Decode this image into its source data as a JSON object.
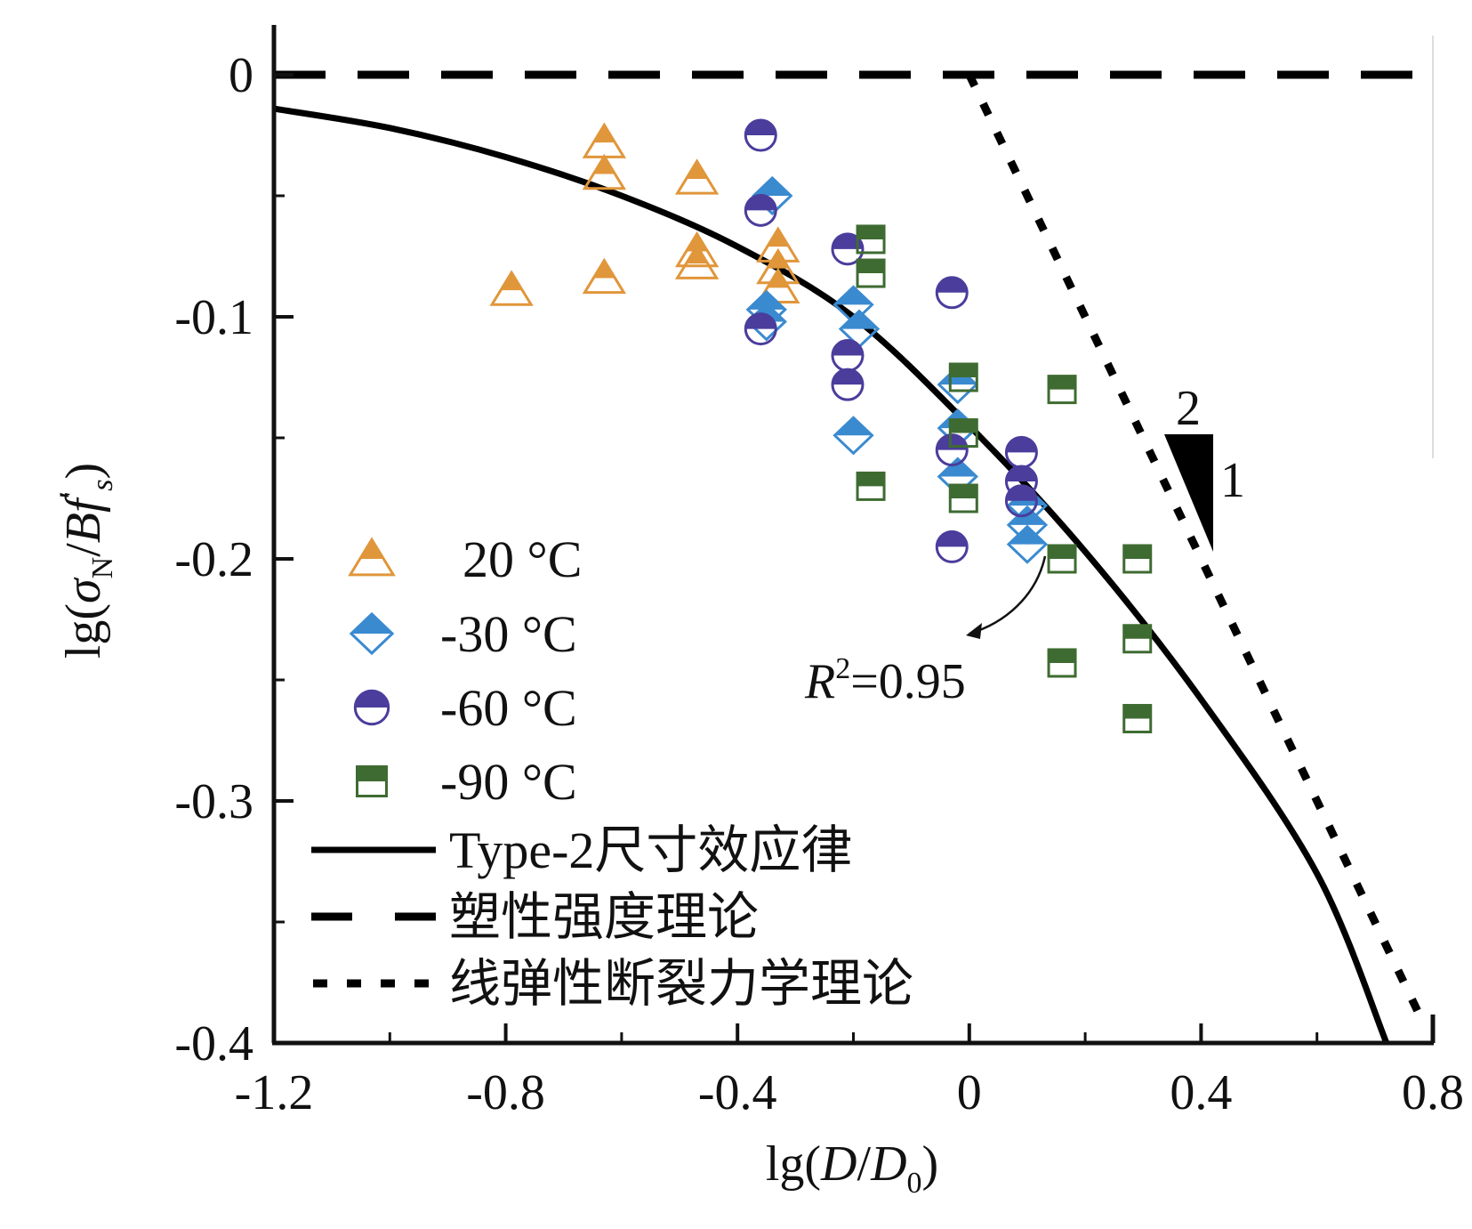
{
  "chart_data": {
    "type": "scatter",
    "title": "",
    "xlabel": {
      "prefix": "lg(",
      "var1": "D",
      "slash": "/",
      "var2": "D",
      "sub": "0",
      "suffix": ")"
    },
    "ylabel": {
      "prefix": "lg(",
      "sigma": "σ",
      "sub_n": "N",
      "slash": "/",
      "b": "B",
      "f": "f",
      "prime": "′",
      "sub_s": "s",
      "suffix": ")"
    },
    "xlim": [
      -1.2,
      0.8
    ],
    "ylim": [
      -0.4,
      0.02
    ],
    "x_ticks": [
      -1.2,
      -0.8,
      -0.4,
      0,
      0.4,
      0.8
    ],
    "x_tick_labels": [
      "-1.2",
      "-0.8",
      "-0.4",
      "0",
      "0.4",
      "0.8"
    ],
    "y_ticks": [
      0,
      -0.1,
      -0.2,
      -0.3,
      -0.4
    ],
    "y_tick_labels": [
      "0",
      "-0.1",
      "-0.2",
      "-0.3",
      "-0.4"
    ],
    "legend_position": "left",
    "series": [
      {
        "name": "20 °C",
        "marker": "triangle",
        "color": "#E0963A",
        "points": [
          [
            -0.63,
            -0.028
          ],
          [
            -0.63,
            -0.041
          ],
          [
            -0.79,
            -0.089
          ],
          [
            -0.63,
            -0.084
          ],
          [
            -0.47,
            -0.043
          ],
          [
            -0.47,
            -0.073
          ],
          [
            -0.47,
            -0.078
          ],
          [
            -0.33,
            -0.071
          ],
          [
            -0.33,
            -0.08
          ],
          [
            -0.33,
            -0.088
          ]
        ]
      },
      {
        "name": "-30 °C",
        "marker": "diamond",
        "color": "#3A8AD0",
        "points": [
          [
            -0.34,
            -0.05
          ],
          [
            -0.35,
            -0.097
          ],
          [
            -0.35,
            -0.102
          ],
          [
            -0.2,
            -0.095
          ],
          [
            -0.19,
            -0.105
          ],
          [
            -0.2,
            -0.149
          ],
          [
            -0.02,
            -0.128
          ],
          [
            -0.02,
            -0.146
          ],
          [
            -0.02,
            -0.166
          ],
          [
            0.1,
            -0.178
          ],
          [
            0.1,
            -0.186
          ],
          [
            0.1,
            -0.194
          ]
        ]
      },
      {
        "name": "-60 °C",
        "marker": "circle",
        "color": "#4A3D9C",
        "points": [
          [
            -0.36,
            -0.025
          ],
          [
            -0.36,
            -0.056
          ],
          [
            -0.36,
            -0.105
          ],
          [
            -0.21,
            -0.072
          ],
          [
            -0.21,
            -0.116
          ],
          [
            -0.21,
            -0.128
          ],
          [
            -0.03,
            -0.09
          ],
          [
            -0.03,
            -0.155
          ],
          [
            -0.03,
            -0.195
          ],
          [
            0.09,
            -0.156
          ],
          [
            0.09,
            -0.168
          ],
          [
            0.09,
            -0.176
          ]
        ]
      },
      {
        "name": "-90 °C",
        "marker": "square",
        "color": "#3E6B31",
        "points": [
          [
            -0.17,
            -0.068
          ],
          [
            -0.17,
            -0.082
          ],
          [
            -0.17,
            -0.17
          ],
          [
            -0.01,
            -0.125
          ],
          [
            -0.01,
            -0.148
          ],
          [
            -0.01,
            -0.175
          ],
          [
            0.16,
            -0.13
          ],
          [
            0.16,
            -0.2
          ],
          [
            0.16,
            -0.243
          ],
          [
            0.29,
            -0.2
          ],
          [
            0.29,
            -0.233
          ],
          [
            0.29,
            -0.266
          ]
        ]
      }
    ],
    "lines": [
      {
        "name": "Type-2尺寸效应律",
        "style": "solid",
        "points": [
          [
            -1.2,
            -0.014
          ],
          [
            -1.0,
            -0.022
          ],
          [
            -0.8,
            -0.034
          ],
          [
            -0.6,
            -0.05
          ],
          [
            -0.4,
            -0.071
          ],
          [
            -0.2,
            -0.1
          ],
          [
            0,
            -0.145
          ],
          [
            0.2,
            -0.197
          ],
          [
            0.4,
            -0.258
          ],
          [
            0.6,
            -0.33
          ],
          [
            0.72,
            -0.4
          ]
        ]
      },
      {
        "name": "塑性强度理论",
        "style": "dashed",
        "points": [
          [
            -1.2,
            0
          ],
          [
            0.8,
            0
          ]
        ]
      },
      {
        "name": "线弹性断裂力学理论",
        "style": "dotted",
        "points": [
          [
            0,
            0
          ],
          [
            0.78,
            -0.39
          ]
        ]
      }
    ],
    "annotations": {
      "r2": {
        "r": "R",
        "sup": "2",
        "value": "=0.95"
      },
      "slope_rise": "2",
      "slope_run": "1"
    }
  }
}
